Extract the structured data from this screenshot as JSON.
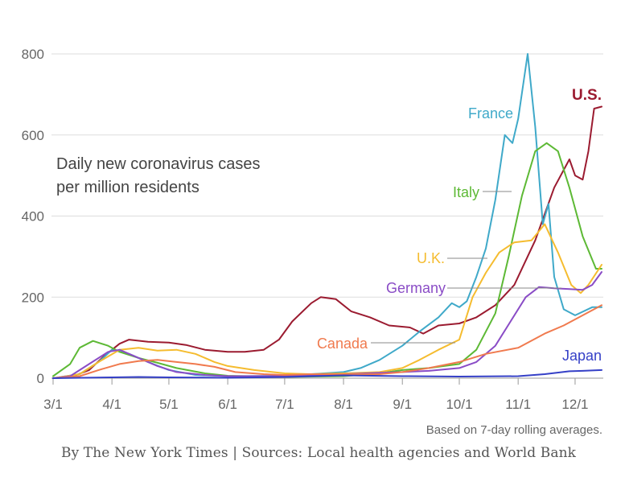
{
  "chart_data": {
    "type": "line",
    "title": "Daily new coronavirus cases\nper million residents",
    "title_lines": [
      "Daily new coronavirus cases",
      "per million residents"
    ],
    "note": "Based on 7-day rolling averages.",
    "credit": "By The New York Times | Sources: Local health agencies and World Bank",
    "xlabel": "",
    "ylabel": "",
    "ylim": [
      0,
      800
    ],
    "yticks": [
      0,
      200,
      400,
      600,
      800
    ],
    "ytick_labels": [
      "0",
      "200",
      "400",
      "600",
      "800"
    ],
    "xticks": [
      "3/1",
      "4/1",
      "5/1",
      "6/1",
      "7/1",
      "8/1",
      "9/1",
      "10/1",
      "11/1",
      "12/1"
    ],
    "xlim": [
      "2020-03-01",
      "2020-12-15"
    ],
    "grid": true,
    "series": [
      {
        "name": "U.S.",
        "color": "#9b1b30",
        "label_bold": true,
        "points": [
          [
            "2020-03-01",
            0
          ],
          [
            "2020-03-10",
            2
          ],
          [
            "2020-03-20",
            20
          ],
          [
            "2020-03-28",
            55
          ],
          [
            "2020-04-05",
            85
          ],
          [
            "2020-04-10",
            95
          ],
          [
            "2020-04-20",
            90
          ],
          [
            "2020-05-01",
            88
          ],
          [
            "2020-05-10",
            82
          ],
          [
            "2020-05-20",
            70
          ],
          [
            "2020-06-01",
            65
          ],
          [
            "2020-06-10",
            65
          ],
          [
            "2020-06-20",
            70
          ],
          [
            "2020-06-28",
            95
          ],
          [
            "2020-07-05",
            140
          ],
          [
            "2020-07-15",
            185
          ],
          [
            "2020-07-20",
            200
          ],
          [
            "2020-07-28",
            195
          ],
          [
            "2020-08-05",
            165
          ],
          [
            "2020-08-15",
            150
          ],
          [
            "2020-08-25",
            130
          ],
          [
            "2020-09-05",
            125
          ],
          [
            "2020-09-12",
            110
          ],
          [
            "2020-09-20",
            130
          ],
          [
            "2020-10-01",
            135
          ],
          [
            "2020-10-10",
            150
          ],
          [
            "2020-10-20",
            180
          ],
          [
            "2020-10-30",
            230
          ],
          [
            "2020-11-10",
            340
          ],
          [
            "2020-11-20",
            470
          ],
          [
            "2020-11-28",
            540
          ],
          [
            "2020-12-01",
            500
          ],
          [
            "2020-12-05",
            490
          ],
          [
            "2020-12-08",
            560
          ],
          [
            "2020-12-11",
            665
          ],
          [
            "2020-12-15",
            670
          ]
        ]
      },
      {
        "name": "France",
        "color": "#3fa9c9",
        "points": [
          [
            "2020-03-01",
            0
          ],
          [
            "2020-03-15",
            10
          ],
          [
            "2020-03-25",
            40
          ],
          [
            "2020-04-01",
            70
          ],
          [
            "2020-04-10",
            60
          ],
          [
            "2020-04-20",
            40
          ],
          [
            "2020-05-01",
            20
          ],
          [
            "2020-05-15",
            8
          ],
          [
            "2020-06-01",
            5
          ],
          [
            "2020-07-01",
            6
          ],
          [
            "2020-07-15",
            10
          ],
          [
            "2020-08-01",
            15
          ],
          [
            "2020-08-10",
            25
          ],
          [
            "2020-08-20",
            45
          ],
          [
            "2020-09-01",
            80
          ],
          [
            "2020-09-10",
            115
          ],
          [
            "2020-09-20",
            150
          ],
          [
            "2020-09-27",
            185
          ],
          [
            "2020-10-01",
            175
          ],
          [
            "2020-10-05",
            190
          ],
          [
            "2020-10-10",
            250
          ],
          [
            "2020-10-15",
            320
          ],
          [
            "2020-10-20",
            440
          ],
          [
            "2020-10-25",
            600
          ],
          [
            "2020-10-29",
            580
          ],
          [
            "2020-11-01",
            640
          ],
          [
            "2020-11-06",
            800
          ],
          [
            "2020-11-10",
            620
          ],
          [
            "2020-11-14",
            380
          ],
          [
            "2020-11-17",
            430
          ],
          [
            "2020-11-20",
            250
          ],
          [
            "2020-11-25",
            170
          ],
          [
            "2020-12-01",
            155
          ],
          [
            "2020-12-10",
            175
          ],
          [
            "2020-12-15",
            175
          ]
        ]
      },
      {
        "name": "Italy",
        "color": "#5db935",
        "points": [
          [
            "2020-03-01",
            5
          ],
          [
            "2020-03-10",
            35
          ],
          [
            "2020-03-15",
            75
          ],
          [
            "2020-03-22",
            92
          ],
          [
            "2020-03-30",
            80
          ],
          [
            "2020-04-05",
            65
          ],
          [
            "2020-04-15",
            50
          ],
          [
            "2020-04-25",
            38
          ],
          [
            "2020-05-05",
            25
          ],
          [
            "2020-05-20",
            12
          ],
          [
            "2020-06-01",
            6
          ],
          [
            "2020-07-01",
            3
          ],
          [
            "2020-08-01",
            5
          ],
          [
            "2020-08-20",
            12
          ],
          [
            "2020-09-01",
            20
          ],
          [
            "2020-09-15",
            25
          ],
          [
            "2020-10-01",
            35
          ],
          [
            "2020-10-10",
            70
          ],
          [
            "2020-10-20",
            160
          ],
          [
            "2020-10-27",
            300
          ],
          [
            "2020-11-03",
            450
          ],
          [
            "2020-11-10",
            560
          ],
          [
            "2020-11-16",
            580
          ],
          [
            "2020-11-22",
            560
          ],
          [
            "2020-11-28",
            470
          ],
          [
            "2020-12-05",
            350
          ],
          [
            "2020-12-12",
            270
          ],
          [
            "2020-12-15",
            270
          ]
        ]
      },
      {
        "name": "U.K.",
        "color": "#f5bc2f",
        "points": [
          [
            "2020-03-01",
            0
          ],
          [
            "2020-03-15",
            10
          ],
          [
            "2020-03-25",
            40
          ],
          [
            "2020-04-05",
            70
          ],
          [
            "2020-04-15",
            75
          ],
          [
            "2020-04-25",
            68
          ],
          [
            "2020-05-05",
            70
          ],
          [
            "2020-05-15",
            60
          ],
          [
            "2020-05-25",
            40
          ],
          [
            "2020-06-01",
            30
          ],
          [
            "2020-06-15",
            20
          ],
          [
            "2020-07-01",
            12
          ],
          [
            "2020-07-15",
            10
          ],
          [
            "2020-08-01",
            12
          ],
          [
            "2020-08-20",
            15
          ],
          [
            "2020-09-01",
            25
          ],
          [
            "2020-09-10",
            45
          ],
          [
            "2020-09-20",
            70
          ],
          [
            "2020-10-01",
            95
          ],
          [
            "2020-10-08",
            200
          ],
          [
            "2020-10-15",
            260
          ],
          [
            "2020-10-22",
            310
          ],
          [
            "2020-10-30",
            335
          ],
          [
            "2020-11-08",
            340
          ],
          [
            "2020-11-15",
            380
          ],
          [
            "2020-11-22",
            310
          ],
          [
            "2020-11-29",
            230
          ],
          [
            "2020-12-04",
            210
          ],
          [
            "2020-12-08",
            230
          ],
          [
            "2020-12-15",
            280
          ]
        ]
      },
      {
        "name": "Germany",
        "color": "#8a4cc6",
        "points": [
          [
            "2020-03-01",
            0
          ],
          [
            "2020-03-10",
            5
          ],
          [
            "2020-03-20",
            35
          ],
          [
            "2020-03-30",
            65
          ],
          [
            "2020-04-05",
            70
          ],
          [
            "2020-04-15",
            50
          ],
          [
            "2020-04-25",
            30
          ],
          [
            "2020-05-05",
            15
          ],
          [
            "2020-05-20",
            8
          ],
          [
            "2020-06-01",
            5
          ],
          [
            "2020-07-01",
            5
          ],
          [
            "2020-08-01",
            10
          ],
          [
            "2020-09-01",
            15
          ],
          [
            "2020-09-15",
            18
          ],
          [
            "2020-10-01",
            25
          ],
          [
            "2020-10-10",
            40
          ],
          [
            "2020-10-20",
            80
          ],
          [
            "2020-10-28",
            140
          ],
          [
            "2020-11-05",
            200
          ],
          [
            "2020-11-12",
            225
          ],
          [
            "2020-11-20",
            222
          ],
          [
            "2020-11-28",
            220
          ],
          [
            "2020-12-05",
            218
          ],
          [
            "2020-12-10",
            230
          ],
          [
            "2020-12-15",
            262
          ]
        ]
      },
      {
        "name": "Canada",
        "color": "#f07a4e",
        "points": [
          [
            "2020-03-01",
            0
          ],
          [
            "2020-03-15",
            5
          ],
          [
            "2020-03-25",
            20
          ],
          [
            "2020-04-05",
            35
          ],
          [
            "2020-04-15",
            42
          ],
          [
            "2020-04-25",
            45
          ],
          [
            "2020-05-05",
            40
          ],
          [
            "2020-05-15",
            35
          ],
          [
            "2020-05-25",
            28
          ],
          [
            "2020-06-05",
            15
          ],
          [
            "2020-06-20",
            10
          ],
          [
            "2020-07-01",
            8
          ],
          [
            "2020-07-15",
            10
          ],
          [
            "2020-08-01",
            10
          ],
          [
            "2020-08-20",
            10
          ],
          [
            "2020-09-01",
            15
          ],
          [
            "2020-09-15",
            25
          ],
          [
            "2020-10-01",
            40
          ],
          [
            "2020-10-15",
            60
          ],
          [
            "2020-11-01",
            75
          ],
          [
            "2020-11-15",
            110
          ],
          [
            "2020-11-25",
            130
          ],
          [
            "2020-12-05",
            155
          ],
          [
            "2020-12-15",
            180
          ]
        ]
      },
      {
        "name": "Japan",
        "color": "#3540c7",
        "points": [
          [
            "2020-03-01",
            0
          ],
          [
            "2020-04-01",
            2
          ],
          [
            "2020-04-15",
            3
          ],
          [
            "2020-05-01",
            2
          ],
          [
            "2020-06-01",
            1
          ],
          [
            "2020-07-01",
            3
          ],
          [
            "2020-08-01",
            7
          ],
          [
            "2020-09-01",
            5
          ],
          [
            "2020-10-01",
            4
          ],
          [
            "2020-11-01",
            5
          ],
          [
            "2020-11-15",
            10
          ],
          [
            "2020-11-28",
            17
          ],
          [
            "2020-12-05",
            18
          ],
          [
            "2020-12-15",
            20
          ]
        ]
      }
    ]
  }
}
